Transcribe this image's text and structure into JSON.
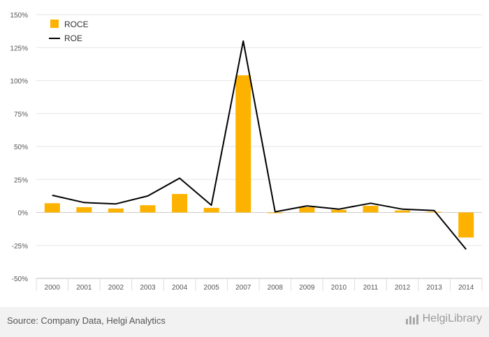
{
  "chart_data": {
    "type": "bar",
    "categories": [
      "2000",
      "2001",
      "2002",
      "2003",
      "2004",
      "2005",
      "2007",
      "2008",
      "2009",
      "2010",
      "2011",
      "2012",
      "2013",
      "2014"
    ],
    "series": [
      {
        "name": "ROCE",
        "type": "bar",
        "color": "#fdb200",
        "values": [
          7,
          4,
          3,
          5.5,
          14,
          3.5,
          104,
          -0.5,
          4,
          2,
          5,
          1.5,
          0.5,
          -19
        ]
      },
      {
        "name": "ROE",
        "type": "line",
        "color": "#000000",
        "values": [
          13,
          7.5,
          6.5,
          12.5,
          26,
          5.5,
          130,
          0.5,
          5,
          2.5,
          7,
          2.5,
          1.5,
          -28
        ]
      }
    ],
    "y_ticks": [
      "150%",
      "125%",
      "100%",
      "75%",
      "50%",
      "25%",
      "0%",
      "-25%",
      "-50%"
    ],
    "ylim": [
      -50,
      150
    ],
    "y_unit": "%",
    "grid": true,
    "legend_position": "top-left"
  },
  "legend": {
    "roce_label": "ROCE",
    "roe_label": "ROE"
  },
  "footer": {
    "source": "Source: Company Data, Helgi Analytics",
    "brand": "HelgiLibrary"
  }
}
